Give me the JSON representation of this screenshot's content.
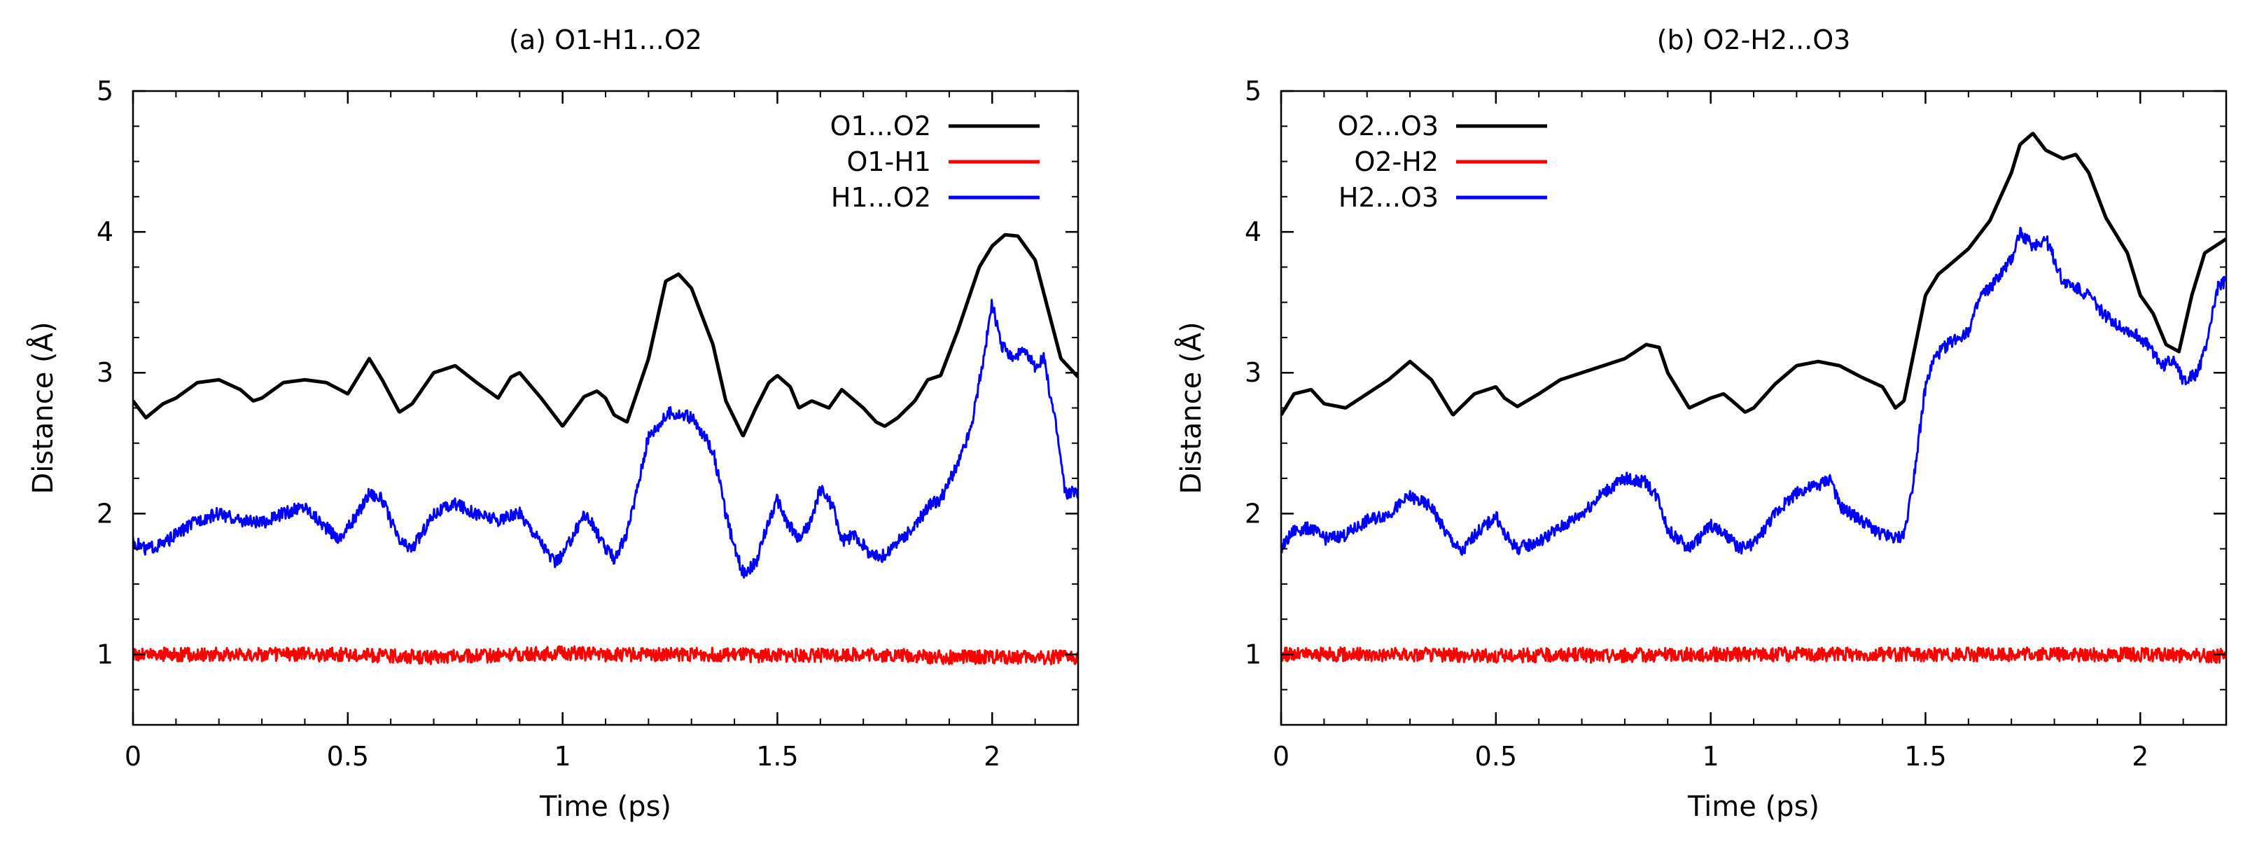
{
  "chart_data": [
    {
      "type": "line",
      "title": "(a) O1-H1...O2",
      "xlabel": "Time (ps)",
      "ylabel": "Distance (Å)",
      "xlim": [
        0,
        2.2
      ],
      "ylim": [
        0.5,
        5
      ],
      "xticks": [
        0,
        0.5,
        1,
        1.5,
        2
      ],
      "xtick_labels": [
        "0",
        "0.5",
        "1",
        "1.5",
        "2"
      ],
      "yticks": [
        1,
        2,
        3,
        4,
        5
      ],
      "ytick_labels": [
        "1",
        "2",
        "3",
        "4",
        "5"
      ],
      "legend_position": "top-right",
      "series": [
        {
          "name": "O1...O2",
          "color": "#000000",
          "noise": 0.0,
          "x": [
            0,
            0.03,
            0.07,
            0.1,
            0.15,
            0.2,
            0.25,
            0.28,
            0.3,
            0.35,
            0.4,
            0.45,
            0.5,
            0.52,
            0.55,
            0.58,
            0.62,
            0.65,
            0.7,
            0.75,
            0.8,
            0.85,
            0.88,
            0.9,
            0.95,
            1.0,
            1.05,
            1.08,
            1.1,
            1.12,
            1.15,
            1.2,
            1.24,
            1.27,
            1.3,
            1.35,
            1.38,
            1.42,
            1.45,
            1.48,
            1.5,
            1.53,
            1.55,
            1.58,
            1.62,
            1.65,
            1.7,
            1.73,
            1.75,
            1.78,
            1.82,
            1.85,
            1.88,
            1.92,
            1.97,
            2.0,
            2.03,
            2.06,
            2.1,
            2.13,
            2.16,
            2.2
          ],
          "y": [
            2.8,
            2.68,
            2.78,
            2.82,
            2.93,
            2.95,
            2.88,
            2.8,
            2.82,
            2.93,
            2.95,
            2.93,
            2.85,
            2.95,
            3.1,
            2.95,
            2.72,
            2.78,
            3.0,
            3.05,
            2.93,
            2.82,
            2.97,
            3.0,
            2.82,
            2.62,
            2.83,
            2.87,
            2.82,
            2.7,
            2.65,
            3.1,
            3.65,
            3.7,
            3.6,
            3.2,
            2.8,
            2.55,
            2.75,
            2.93,
            2.98,
            2.9,
            2.75,
            2.8,
            2.75,
            2.88,
            2.75,
            2.65,
            2.62,
            2.68,
            2.8,
            2.95,
            2.98,
            3.3,
            3.75,
            3.9,
            3.98,
            3.97,
            3.8,
            3.45,
            3.1,
            2.97
          ]
        },
        {
          "name": "O1-H1",
          "color": "#ff0000",
          "noise": 0.05,
          "x": [
            0,
            0.3,
            0.5,
            0.7,
            0.9,
            1.0,
            1.1,
            1.3,
            1.5,
            1.7,
            1.9,
            2.2
          ],
          "y": [
            1.0,
            1.0,
            1.0,
            0.98,
            1.0,
            1.01,
            1.0,
            1.0,
            0.99,
            1.0,
            0.98,
            0.98
          ]
        },
        {
          "name": "H1...O2",
          "color": "#0000ff",
          "noise": 0.045,
          "x": [
            0,
            0.03,
            0.07,
            0.1,
            0.15,
            0.2,
            0.25,
            0.3,
            0.35,
            0.4,
            0.45,
            0.48,
            0.52,
            0.55,
            0.58,
            0.62,
            0.65,
            0.7,
            0.75,
            0.8,
            0.85,
            0.9,
            0.95,
            0.98,
            1.0,
            1.03,
            1.05,
            1.07,
            1.1,
            1.12,
            1.15,
            1.2,
            1.25,
            1.3,
            1.35,
            1.38,
            1.4,
            1.42,
            1.45,
            1.48,
            1.5,
            1.52,
            1.55,
            1.58,
            1.6,
            1.63,
            1.65,
            1.68,
            1.72,
            1.75,
            1.78,
            1.82,
            1.85,
            1.88,
            1.92,
            1.95,
            1.98,
            2.0,
            2.02,
            2.05,
            2.07,
            2.1,
            2.12,
            2.15,
            2.17,
            2.2
          ],
          "y": [
            1.8,
            1.75,
            1.78,
            1.85,
            1.95,
            2.0,
            1.95,
            1.93,
            2.0,
            2.05,
            1.9,
            1.82,
            1.98,
            2.15,
            2.1,
            1.8,
            1.75,
            2.0,
            2.07,
            2.0,
            1.95,
            2.0,
            1.8,
            1.65,
            1.7,
            1.88,
            2.0,
            1.92,
            1.75,
            1.68,
            1.85,
            2.55,
            2.72,
            2.68,
            2.45,
            2.0,
            1.75,
            1.58,
            1.65,
            1.95,
            2.1,
            1.95,
            1.82,
            1.95,
            2.18,
            2.05,
            1.8,
            1.85,
            1.7,
            1.7,
            1.8,
            1.9,
            2.05,
            2.1,
            2.35,
            2.6,
            3.1,
            3.5,
            3.2,
            3.1,
            3.15,
            3.05,
            3.1,
            2.6,
            2.15,
            2.15
          ]
        }
      ]
    },
    {
      "type": "line",
      "title": "(b) O2-H2...O3",
      "xlabel": "Time (ps)",
      "ylabel": "Distance (Å)",
      "xlim": [
        0,
        2.2
      ],
      "ylim": [
        0.5,
        5
      ],
      "xticks": [
        0,
        0.5,
        1,
        1.5,
        2
      ],
      "xtick_labels": [
        "0",
        "0.5",
        "1",
        "1.5",
        "2"
      ],
      "yticks": [
        1,
        2,
        3,
        4,
        5
      ],
      "ytick_labels": [
        "1",
        "2",
        "3",
        "4",
        "5"
      ],
      "legend_position": "top-left",
      "series": [
        {
          "name": "O2...O3",
          "color": "#000000",
          "noise": 0.0,
          "x": [
            0,
            0.03,
            0.07,
            0.1,
            0.15,
            0.2,
            0.25,
            0.3,
            0.35,
            0.4,
            0.45,
            0.5,
            0.52,
            0.55,
            0.6,
            0.65,
            0.7,
            0.75,
            0.8,
            0.85,
            0.88,
            0.9,
            0.95,
            1.0,
            1.03,
            1.05,
            1.08,
            1.1,
            1.15,
            1.2,
            1.25,
            1.3,
            1.35,
            1.4,
            1.43,
            1.45,
            1.47,
            1.5,
            1.53,
            1.55,
            1.6,
            1.65,
            1.7,
            1.72,
            1.75,
            1.78,
            1.82,
            1.85,
            1.88,
            1.92,
            1.97,
            2.0,
            2.03,
            2.06,
            2.09,
            2.12,
            2.15,
            2.2
          ],
          "y": [
            2.7,
            2.85,
            2.88,
            2.78,
            2.75,
            2.85,
            2.95,
            3.08,
            2.95,
            2.7,
            2.85,
            2.9,
            2.82,
            2.76,
            2.85,
            2.95,
            3.0,
            3.05,
            3.1,
            3.2,
            3.18,
            3.0,
            2.75,
            2.82,
            2.85,
            2.8,
            2.72,
            2.75,
            2.92,
            3.05,
            3.08,
            3.05,
            2.97,
            2.9,
            2.75,
            2.8,
            3.1,
            3.55,
            3.7,
            3.75,
            3.88,
            4.08,
            4.42,
            4.62,
            4.7,
            4.58,
            4.52,
            4.55,
            4.42,
            4.1,
            3.85,
            3.55,
            3.42,
            3.2,
            3.15,
            3.55,
            3.85,
            3.95
          ]
        },
        {
          "name": "O2-H2",
          "color": "#ff0000",
          "noise": 0.05,
          "x": [
            0,
            0.3,
            0.5,
            0.7,
            0.72,
            0.9,
            1.1,
            1.3,
            1.5,
            1.7,
            1.9,
            2.2
          ],
          "y": [
            1.0,
            1.0,
            0.99,
            1.0,
            0.99,
            1.0,
            1.0,
            1.0,
            1.0,
            1.0,
            1.0,
            0.99
          ]
        },
        {
          "name": "H2...O3",
          "color": "#0000ff",
          "noise": 0.045,
          "x": [
            0,
            0.03,
            0.07,
            0.1,
            0.15,
            0.2,
            0.25,
            0.3,
            0.35,
            0.38,
            0.42,
            0.45,
            0.5,
            0.52,
            0.55,
            0.6,
            0.65,
            0.7,
            0.75,
            0.8,
            0.85,
            0.88,
            0.9,
            0.95,
            1.0,
            1.03,
            1.07,
            1.1,
            1.15,
            1.2,
            1.25,
            1.28,
            1.3,
            1.35,
            1.4,
            1.43,
            1.45,
            1.47,
            1.5,
            1.52,
            1.55,
            1.6,
            1.63,
            1.65,
            1.7,
            1.72,
            1.75,
            1.78,
            1.82,
            1.85,
            1.88,
            1.92,
            1.97,
            2.0,
            2.03,
            2.05,
            2.08,
            2.1,
            2.13,
            2.15,
            2.18,
            2.2
          ],
          "y": [
            1.75,
            1.88,
            1.9,
            1.82,
            1.85,
            1.95,
            2.0,
            2.12,
            2.05,
            1.88,
            1.72,
            1.85,
            1.98,
            1.85,
            1.75,
            1.8,
            1.9,
            2.0,
            2.15,
            2.25,
            2.22,
            2.1,
            1.88,
            1.75,
            1.92,
            1.85,
            1.75,
            1.78,
            2.0,
            2.15,
            2.2,
            2.25,
            2.05,
            1.95,
            1.85,
            1.82,
            1.85,
            2.2,
            2.9,
            3.1,
            3.2,
            3.3,
            3.55,
            3.6,
            3.8,
            4.0,
            3.9,
            3.95,
            3.65,
            3.6,
            3.55,
            3.4,
            3.3,
            3.25,
            3.15,
            3.05,
            3.1,
            2.95,
            2.98,
            3.15,
            3.6,
            3.65
          ]
        }
      ]
    }
  ]
}
